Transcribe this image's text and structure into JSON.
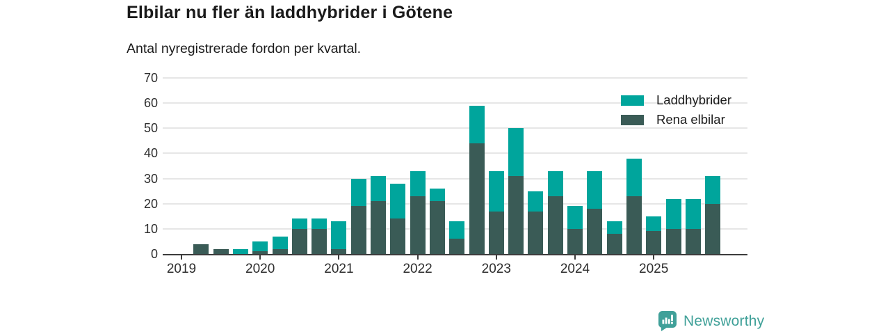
{
  "header": {
    "title": "Elbilar nu fler än laddhybrider i Götene",
    "subtitle": "Antal nyregistrerade fordon per kvartal."
  },
  "chart_data": {
    "type": "bar",
    "stacked": true,
    "title": "Elbilar nu fler än laddhybrider i Götene",
    "subtitle": "Antal nyregistrerade fordon per kvartal.",
    "x": [
      "2019-Q1",
      "2019-Q2",
      "2019-Q3",
      "2019-Q4",
      "2020-Q1",
      "2020-Q2",
      "2020-Q3",
      "2020-Q4",
      "2021-Q1",
      "2021-Q2",
      "2021-Q3",
      "2021-Q4",
      "2022-Q1",
      "2022-Q2",
      "2022-Q3",
      "2022-Q4",
      "2023-Q1",
      "2023-Q2",
      "2023-Q3",
      "2023-Q4",
      "2024-Q1",
      "2024-Q2",
      "2024-Q3",
      "2024-Q4",
      "2025-Q1",
      "2025-Q2",
      "2025-Q3",
      "2025-Q4"
    ],
    "x_tick_labels": [
      "2019",
      "2020",
      "2021",
      "2022",
      "2023",
      "2024",
      "2025"
    ],
    "series": [
      {
        "name": "Laddhybrider",
        "color": "#00a59c",
        "values": [
          0,
          0,
          0,
          2,
          4,
          5,
          4,
          4,
          11,
          11,
          10,
          14,
          10,
          5,
          7,
          15,
          16,
          19,
          8,
          10,
          9,
          15,
          5,
          15,
          6,
          12,
          12,
          11
        ]
      },
      {
        "name": "Rena elbilar",
        "color": "#3a5b56",
        "values": [
          0,
          4,
          2,
          0,
          1,
          2,
          10,
          10,
          2,
          19,
          21,
          14,
          23,
          21,
          6,
          44,
          17,
          31,
          17,
          23,
          10,
          18,
          8,
          23,
          9,
          10,
          10,
          20
        ]
      }
    ],
    "stack_order_bottom_to_top": [
      "Rena elbilar",
      "Laddhybrider"
    ],
    "totals": [
      0,
      4,
      2,
      2,
      5,
      7,
      14,
      14,
      13,
      30,
      31,
      28,
      33,
      26,
      13,
      59,
      33,
      50,
      25,
      33,
      19,
      33,
      13,
      38,
      15,
      22,
      22,
      31
    ],
    "ylim": [
      0,
      70
    ],
    "yticks": [
      0,
      10,
      20,
      30,
      40,
      50,
      60,
      70
    ],
    "grid": "horizontal",
    "legend_position": "top-right",
    "legend": [
      "Laddhybrider",
      "Rena elbilar"
    ]
  },
  "footer": {
    "brand": "Newsworthy",
    "logo_icon": "bar-chart-speech-bubble-icon",
    "brand_color": "#3fa098"
  },
  "colors": {
    "background": "#ffffff",
    "laddhybrider": "#00a59c",
    "rena_elbilar": "#3a5b56",
    "gridline": "#e6e6e6",
    "axis": "#3c3c3c",
    "text": "#1a1a1a"
  }
}
